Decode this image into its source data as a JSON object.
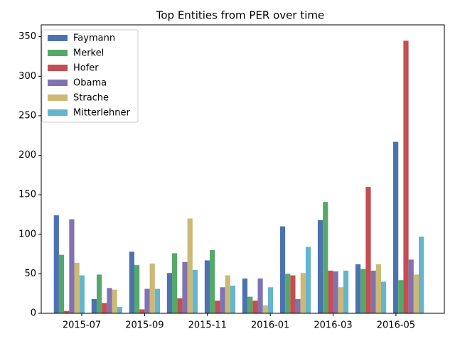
{
  "chart_data": {
    "type": "bar",
    "title": "Top Entities from PER over time",
    "x": [
      -0.4,
      0.8,
      2.0,
      3.2,
      4.4,
      5.6,
      6.8,
      8.0,
      9.2,
      10.4
    ],
    "xlim": [
      -1.29,
      11.54
    ],
    "xticks": [
      {
        "value": 0,
        "label": "2015-07"
      },
      {
        "value": 2,
        "label": "2015-09"
      },
      {
        "value": 4,
        "label": "2015-11"
      },
      {
        "value": 6,
        "label": "2016-01"
      },
      {
        "value": 8,
        "label": "2016-03"
      },
      {
        "value": 10,
        "label": "2016-05"
      }
    ],
    "ylim": [
      0,
      365
    ],
    "yticks": [
      0,
      50,
      100,
      150,
      200,
      250,
      300,
      350
    ],
    "legend": "upper left",
    "series": [
      {
        "name": "Faymann",
        "color": "#4c72b0",
        "values": [
          124,
          18,
          78,
          51,
          67,
          44,
          110,
          118,
          62,
          217
        ]
      },
      {
        "name": "Merkel",
        "color": "#55a868",
        "values": [
          74,
          49,
          61,
          76,
          80,
          21,
          50,
          141,
          56,
          42
        ]
      },
      {
        "name": "Hofer",
        "color": "#c44e52",
        "values": [
          3,
          13,
          5,
          19,
          16,
          16,
          48,
          54,
          160,
          345
        ]
      },
      {
        "name": "Obama",
        "color": "#8172b2",
        "values": [
          119,
          32,
          31,
          65,
          33,
          44,
          18,
          53,
          54,
          68
        ]
      },
      {
        "name": "Strache",
        "color": "#ccb974",
        "values": [
          64,
          30,
          63,
          120,
          48,
          10,
          51,
          33,
          62,
          49
        ]
      },
      {
        "name": "Mitterlehner",
        "color": "#64b5cd",
        "values": [
          48,
          8,
          31,
          55,
          35,
          33,
          84,
          54,
          40,
          97
        ]
      }
    ]
  }
}
